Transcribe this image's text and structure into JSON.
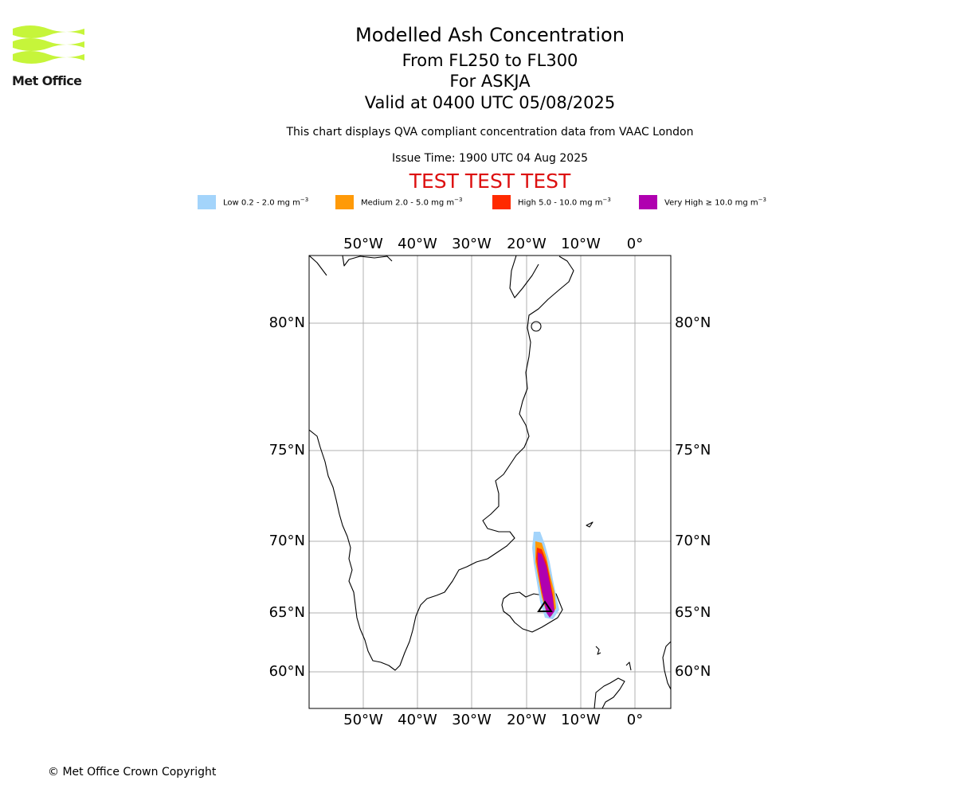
{
  "logo": {
    "name": "Met Office"
  },
  "header": {
    "title": "Modelled Ash Concentration",
    "line1": "From FL250 to FL300",
    "line2": "For ASKJA",
    "line3": "Valid at 0400 UTC 05/08/2025",
    "info": "This chart displays QVA compliant concentration data from VAAC London",
    "issue_time": "Issue Time: 1900 UTC 04 Aug 2025",
    "test_banner": "TEST TEST TEST"
  },
  "legend": [
    {
      "label": "Low 0.2 - 2.0 mg m",
      "unit_exp": "−3",
      "color": "#a3d4fb"
    },
    {
      "label": "Medium 2.0 - 5.0 mg m",
      "unit_exp": "−3",
      "color": "#ff9a08"
    },
    {
      "label": "High 5.0 - 10.0 mg m",
      "unit_exp": "−3",
      "color": "#ff2a00"
    },
    {
      "label": "Very High  ≥  10.0 mg m",
      "unit_exp": "−3",
      "color": "#b000b0"
    }
  ],
  "map": {
    "lon_ticks": [
      "50°W",
      "40°W",
      "30°W",
      "20°W",
      "10°W",
      "0°"
    ],
    "lat_ticks": [
      "80°N",
      "75°N",
      "70°N",
      "65°N",
      "60°N"
    ],
    "grid": true,
    "coastline_color": "#000000",
    "grid_color": "#b0b0b0"
  },
  "footer": {
    "copyright": "© Met Office Crown Copyright"
  }
}
